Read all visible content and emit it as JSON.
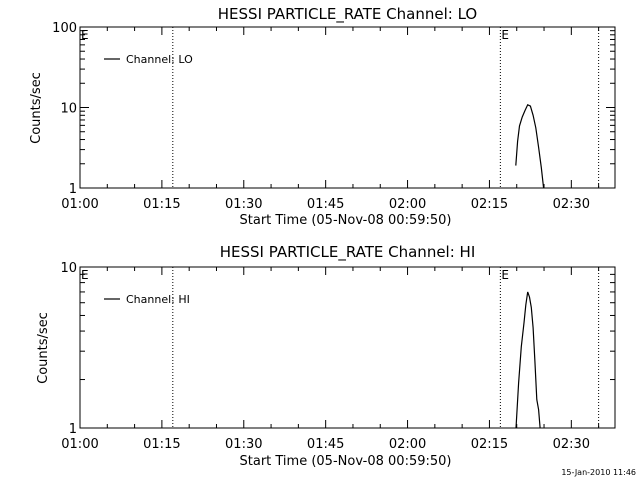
{
  "chart_data": [
    {
      "type": "line",
      "title": "HESSI PARTICLE_RATE Channel: LO",
      "xlabel": "Start Time (05-Nov-08 00:59:50)",
      "ylabel": "Counts/sec",
      "yscale": "log",
      "ylim": [
        1,
        100
      ],
      "xlim": [
        "01:00",
        "02:38"
      ],
      "x_ticks": [
        "01:00",
        "01:15",
        "01:30",
        "01:45",
        "02:00",
        "02:15",
        "02:30"
      ],
      "y_ticks": [
        "1",
        "10",
        "100"
      ],
      "event_lines": [
        "01:17",
        "02:17",
        "02:35"
      ],
      "event_labels": [
        "E",
        "E"
      ],
      "legend": {
        "entries": [
          "Channel: LO"
        ],
        "position": "top-left"
      },
      "series": [
        {
          "name": "Channel: LO",
          "x": [
            "02:19:50",
            "02:20:10",
            "02:20:30",
            "02:21:00",
            "02:21:30",
            "02:22:00",
            "02:22:30",
            "02:23:00",
            "02:23:30",
            "02:24:00",
            "02:24:30",
            "02:25:00"
          ],
          "y": [
            1.9,
            3.8,
            5.9,
            7.6,
            9.1,
            10.8,
            10.4,
            8.0,
            5.6,
            3.2,
            1.8,
            0.9
          ]
        }
      ]
    },
    {
      "type": "line",
      "title": "HESSI PARTICLE_RATE Channel: HI",
      "xlabel": "Start Time (05-Nov-08 00:59:50)",
      "ylabel": "Counts/sec",
      "yscale": "log",
      "ylim": [
        1,
        10
      ],
      "xlim": [
        "01:00",
        "02:38"
      ],
      "x_ticks": [
        "01:00",
        "01:15",
        "01:30",
        "01:45",
        "02:00",
        "02:15",
        "02:30"
      ],
      "y_ticks": [
        "1",
        "10"
      ],
      "event_lines": [
        "01:17",
        "02:17",
        "02:35"
      ],
      "event_labels": [
        "E",
        "E"
      ],
      "legend": {
        "entries": [
          "Channel: HI"
        ],
        "position": "top-left"
      },
      "series": [
        {
          "name": "Channel: HI",
          "x": [
            "02:19:50",
            "02:20:20",
            "02:20:50",
            "02:21:20",
            "02:21:40",
            "02:22:00",
            "02:22:20",
            "02:22:40",
            "02:23:00",
            "02:23:20",
            "02:23:40",
            "02:24:00",
            "02:24:20"
          ],
          "y": [
            0.95,
            1.9,
            3.2,
            4.5,
            5.8,
            7.0,
            6.5,
            5.6,
            4.2,
            2.6,
            1.5,
            1.3,
            0.95
          ]
        }
      ]
    }
  ],
  "timestamp": "15-Jan-2010 11:46"
}
